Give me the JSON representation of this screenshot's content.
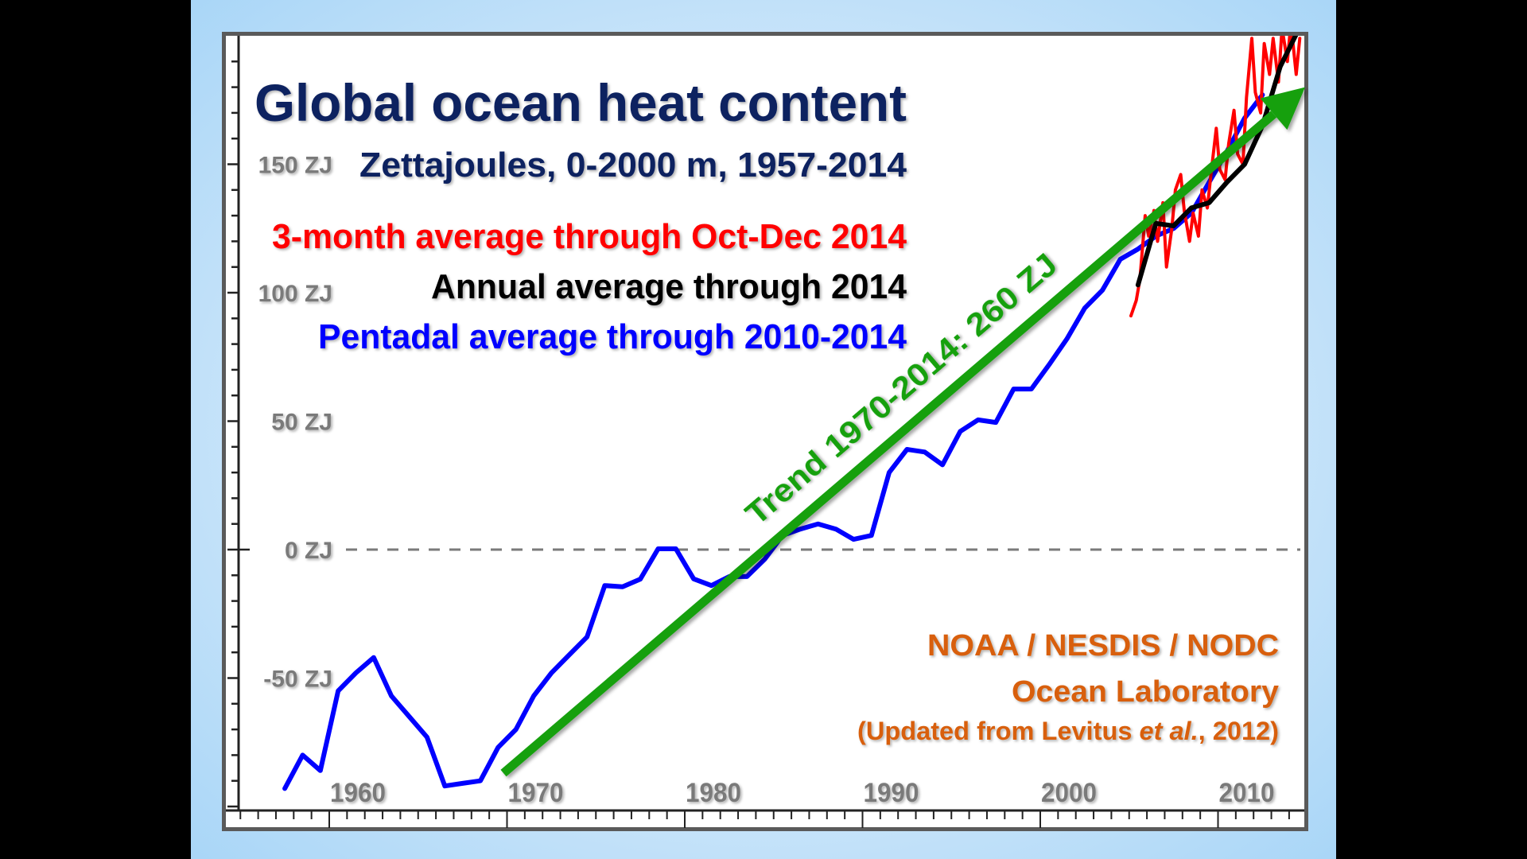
{
  "chart_data": {
    "type": "line",
    "title": "Global ocean heat content",
    "subtitle": "Zettajoules, 0-2000 m, 1957-2014",
    "xlabel": "",
    "ylabel": "",
    "xlim": [
      1955,
      2015
    ],
    "ylim": [
      -100,
      200
    ],
    "x_ticks": [
      1960,
      1970,
      1980,
      1990,
      2000,
      2010
    ],
    "x_tick_labels": [
      "1960",
      "1970",
      "1980",
      "1990",
      "2000",
      "2010"
    ],
    "y_ticks": [
      -50,
      0,
      50,
      100,
      150
    ],
    "y_tick_labels": [
      "-50 ZJ",
      "0 ZJ",
      "50 ZJ",
      "100 ZJ",
      "150 ZJ"
    ],
    "zero_line": "dashed",
    "legend": [
      {
        "label": "3-month average through Oct-Dec 2014",
        "color": "#ff0000"
      },
      {
        "label": "Annual average through 2014",
        "color": "#000000"
      },
      {
        "label": "Pentadal average through 2010-2014",
        "color": "#0000ff"
      }
    ],
    "series": [
      {
        "name": "Pentadal average through 2010-2014",
        "color": "#0000ff",
        "x": [
          1957.5,
          1958.5,
          1959.5,
          1960.5,
          1961.5,
          1962.5,
          1963.5,
          1964.5,
          1965.5,
          1966.5,
          1967.5,
          1968.5,
          1969.5,
          1970.5,
          1971.5,
          1972.5,
          1973.5,
          1974.5,
          1975.5,
          1976.5,
          1977.5,
          1978.5,
          1979.5,
          1980.5,
          1981.5,
          1982.5,
          1983.5,
          1984.5,
          1985.5,
          1986.5,
          1987.5,
          1988.5,
          1989.5,
          1990.5,
          1991.5,
          1992.5,
          1993.5,
          1994.5,
          1995.5,
          1996.5,
          1997.5,
          1998.5,
          1999.5,
          2000.5,
          2001.5,
          2002.5,
          2003.5,
          2004.5,
          2005.5,
          2006.5,
          2007.5,
          2008.5,
          2009.5,
          2010.5,
          2011.5,
          2012.5
        ],
        "values": [
          -93,
          -80,
          -86,
          -55,
          -48,
          -42,
          -57,
          -65,
          -73,
          -92,
          -91,
          -90,
          -77,
          -70,
          -57,
          -48,
          -41,
          -34,
          -14,
          -14.5,
          -11.5,
          0.3,
          0.3,
          -11.4,
          -14,
          -10.5,
          -10.5,
          -3.7,
          5.5,
          8,
          10,
          8,
          4,
          5.5,
          30,
          39,
          38,
          33,
          46,
          50.5,
          49.5,
          62.5,
          62.5,
          72,
          82,
          94,
          101,
          113,
          117,
          122,
          125,
          131,
          143,
          155,
          168,
          177
        ]
      },
      {
        "name": "Annual average through 2014",
        "color": "#000000",
        "x": [
          2005.5,
          2006.5,
          2007.5,
          2008.5,
          2009.5,
          2010.5,
          2011.5,
          2012.5,
          2013.5,
          2014.5
        ],
        "values": [
          103,
          127,
          126,
          133,
          135,
          143,
          150,
          165,
          188,
          202
        ]
      },
      {
        "name": "3-month average through Oct-Dec 2014",
        "color": "#ff0000",
        "x": [
          2005.1,
          2005.4,
          2005.6,
          2005.9,
          2006.1,
          2006.4,
          2006.6,
          2006.9,
          2007.1,
          2007.4,
          2007.6,
          2007.9,
          2008.1,
          2008.4,
          2008.6,
          2008.9,
          2009.1,
          2009.4,
          2009.6,
          2009.9,
          2010.1,
          2010.4,
          2010.6,
          2010.9,
          2011.1,
          2011.4,
          2011.6,
          2011.9,
          2012.1,
          2012.4,
          2012.6,
          2012.9,
          2013.1,
          2013.4,
          2013.6,
          2013.9,
          2014.1,
          2014.4,
          2014.6
        ],
        "values": [
          91,
          97,
          105,
          130,
          122,
          132,
          120,
          135,
          110,
          125,
          140,
          146,
          132,
          120,
          131,
          122,
          140,
          133,
          146,
          164,
          148,
          144,
          158,
          171,
          154,
          150,
          176,
          199,
          178,
          170,
          197,
          185,
          199,
          182,
          203,
          190,
          205,
          185,
          199
        ]
      }
    ],
    "trend": {
      "label": "Trend 1970-2014: 260 ZJ",
      "color": "#14a010",
      "x": [
        1969.8,
        2014.9
      ],
      "values": [
        -87,
        180
      ]
    },
    "annotations": [
      "NOAA / NESDIS / NODC",
      "Ocean Laboratory",
      "(Updated from Levitus et al., 2012)"
    ]
  },
  "text": {
    "title": "Global ocean heat content",
    "subtitle": "Zettajoules, 0-2000 m, 1957-2014",
    "legend_red": "3-month average through Oct-Dec 2014",
    "legend_black": "Annual average through 2014",
    "legend_blue": "Pentadal average through 2010-2014",
    "trend_label": "Trend 1970-2014: 260 ZJ",
    "credit_line1": "NOAA / NESDIS / NODC",
    "credit_line2": "Ocean Laboratory",
    "credit_line3_pre": "(Updated from Levitus ",
    "credit_line3_italic": "et al.",
    "credit_line3_post": ", 2012)"
  },
  "colors": {
    "title": "#0d2060",
    "axis_label": "#7a7a7a",
    "credit": "#d85f0a",
    "trend": "#14a010"
  }
}
